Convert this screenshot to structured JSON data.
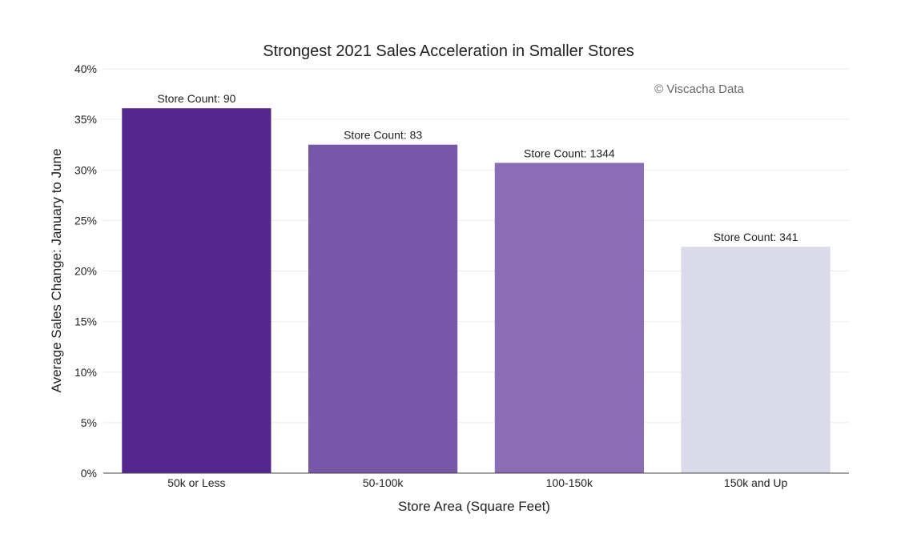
{
  "chart_data": {
    "type": "bar",
    "title": "Strongest 2021 Sales Acceleration in Smaller Stores",
    "xlabel": "Store Area (Square Feet)",
    "ylabel": "Average Sales Change: January to June",
    "watermark": "© Viscacha Data",
    "categories": [
      "50k or Less",
      "50-100k",
      "100-150k",
      "150k and Up"
    ],
    "values": [
      36.1,
      32.5,
      30.7,
      22.4
    ],
    "annotations": [
      "Store Count: 90",
      "Store Count: 83",
      "Store Count: 1344",
      "Store Count: 341"
    ],
    "colors": [
      "#54278f",
      "#7857a8",
      "#8a6db4",
      "#dadaeb"
    ],
    "ylim": [
      0,
      40
    ],
    "yticks": [
      0,
      5,
      10,
      15,
      20,
      25,
      30,
      35,
      40
    ],
    "ytick_labels": [
      "0%",
      "5%",
      "10%",
      "15%",
      "20%",
      "25%",
      "30%",
      "35%",
      "40%"
    ],
    "grid": true,
    "gridline_color": "#ebebeb",
    "axis_color": "#444444"
  }
}
